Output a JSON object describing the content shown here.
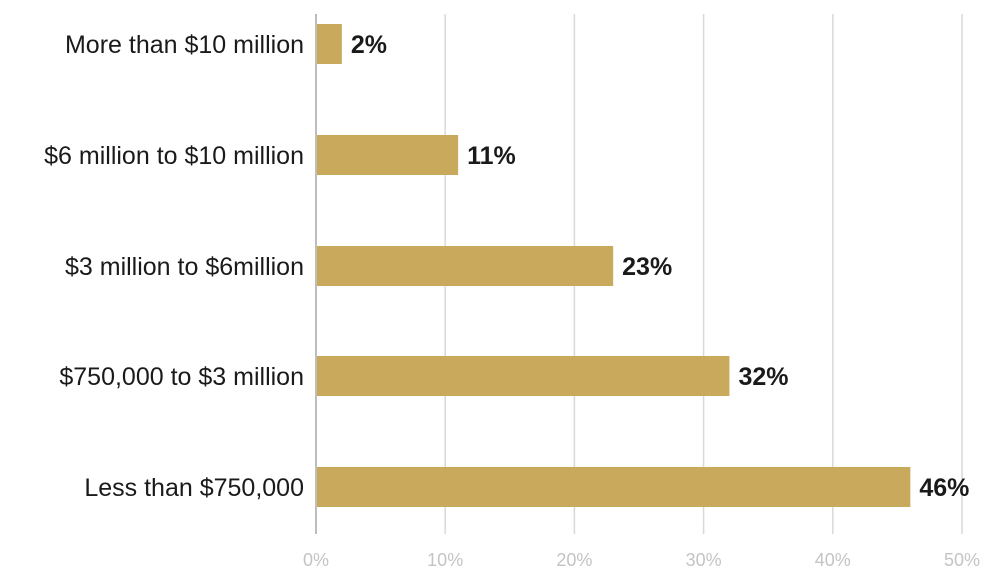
{
  "chart_data": {
    "type": "bar",
    "orientation": "horizontal",
    "categories": [
      "More than $10 million",
      "$6 million to $10 million",
      "$3 million to $6million",
      "$750,000 to $3 million",
      "Less than $750,000"
    ],
    "values": [
      2,
      11,
      23,
      32,
      46
    ],
    "value_labels": [
      "2%",
      "11%",
      "23%",
      "32%",
      "46%"
    ],
    "xlim": [
      0,
      50
    ],
    "x_ticks": [
      0,
      10,
      20,
      30,
      40,
      50
    ],
    "x_tick_labels": [
      "0%",
      "10%",
      "20%",
      "30%",
      "40%",
      "50%"
    ],
    "grid": true,
    "bar_color": "#c9a95b"
  }
}
